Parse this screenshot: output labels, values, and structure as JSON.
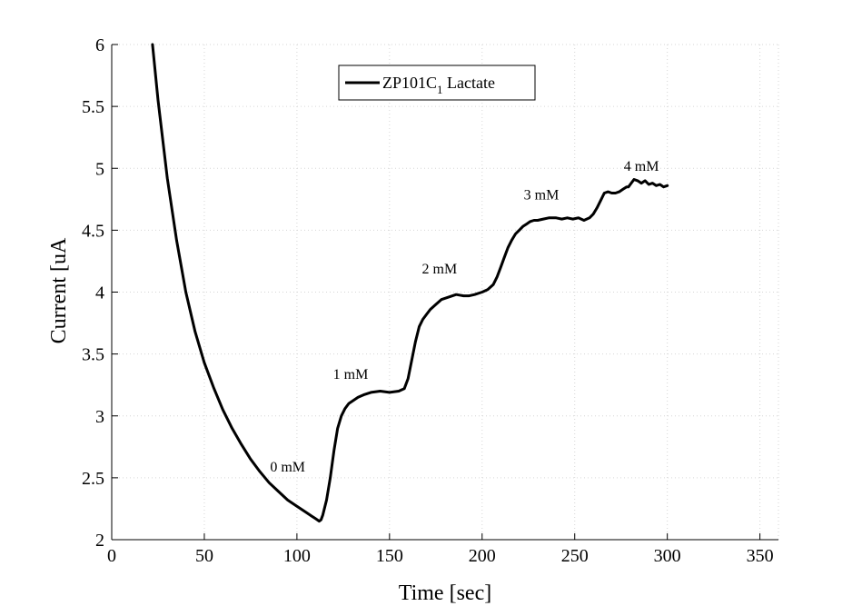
{
  "chart_data": {
    "type": "line",
    "title": "",
    "xlabel": "Time [sec]",
    "ylabel": "Current [uA",
    "xlim": [
      0,
      360
    ],
    "ylim": [
      2,
      6
    ],
    "xticks": [
      0,
      50,
      100,
      150,
      200,
      250,
      300,
      350
    ],
    "xtick_labels": [
      "0",
      "50",
      "100",
      "150",
      "200",
      "250",
      "300",
      "350"
    ],
    "yticks": [
      2,
      2.5,
      3,
      3.5,
      4,
      4.5,
      5,
      5.5,
      6
    ],
    "ytick_labels": [
      "2",
      "2.5",
      "3",
      "3.5",
      "4",
      "4.5",
      "5",
      "5.5",
      "6"
    ],
    "grid": true,
    "legend_position": "top-center",
    "series": [
      {
        "name": "ZP101C",
        "name_subscript": "1",
        "name_suffix": " Lactate",
        "color": "#000000",
        "x": [
          22,
          25,
          30,
          35,
          40,
          45,
          50,
          55,
          60,
          65,
          70,
          75,
          80,
          85,
          90,
          95,
          100,
          105,
          108,
          110,
          112,
          113,
          114,
          116,
          118,
          120,
          122,
          124,
          126,
          128,
          130,
          133,
          136,
          140,
          145,
          150,
          155,
          158,
          160,
          162,
          164,
          166,
          168,
          170,
          172,
          175,
          178,
          182,
          186,
          190,
          193,
          196,
          200,
          203,
          206,
          208,
          210,
          212,
          214,
          216,
          218,
          220,
          222,
          224,
          226,
          228,
          230,
          233,
          236,
          240,
          243,
          246,
          249,
          252,
          255,
          258,
          260,
          262,
          264,
          266,
          268,
          270,
          272,
          274,
          276,
          278,
          279,
          280,
          282,
          284,
          286,
          288,
          290,
          292,
          294,
          296,
          298,
          300
        ],
        "y": [
          6.0,
          5.55,
          4.92,
          4.42,
          4.0,
          3.68,
          3.43,
          3.23,
          3.05,
          2.9,
          2.77,
          2.65,
          2.55,
          2.46,
          2.39,
          2.32,
          2.27,
          2.22,
          2.19,
          2.17,
          2.15,
          2.16,
          2.2,
          2.32,
          2.5,
          2.72,
          2.9,
          3.0,
          3.06,
          3.1,
          3.12,
          3.15,
          3.17,
          3.19,
          3.2,
          3.19,
          3.2,
          3.22,
          3.3,
          3.45,
          3.6,
          3.72,
          3.78,
          3.82,
          3.86,
          3.9,
          3.94,
          3.96,
          3.98,
          3.97,
          3.97,
          3.98,
          4.0,
          4.02,
          4.06,
          4.12,
          4.2,
          4.28,
          4.36,
          4.42,
          4.47,
          4.5,
          4.53,
          4.55,
          4.57,
          4.58,
          4.58,
          4.59,
          4.6,
          4.6,
          4.59,
          4.6,
          4.59,
          4.6,
          4.58,
          4.6,
          4.63,
          4.68,
          4.74,
          4.8,
          4.81,
          4.8,
          4.8,
          4.81,
          4.83,
          4.85,
          4.85,
          4.87,
          4.91,
          4.9,
          4.88,
          4.9,
          4.87,
          4.88,
          4.86,
          4.87,
          4.85,
          4.86
        ]
      }
    ],
    "annotations": [
      {
        "text": "0 mM",
        "x": 95,
        "y": 2.55
      },
      {
        "text": "1 mM",
        "x": 129,
        "y": 3.3
      },
      {
        "text": "2 mM",
        "x": 177,
        "y": 4.15
      },
      {
        "text": "3 mM",
        "x": 232,
        "y": 4.75
      },
      {
        "text": "4 mM",
        "x": 286,
        "y": 4.98
      }
    ]
  }
}
